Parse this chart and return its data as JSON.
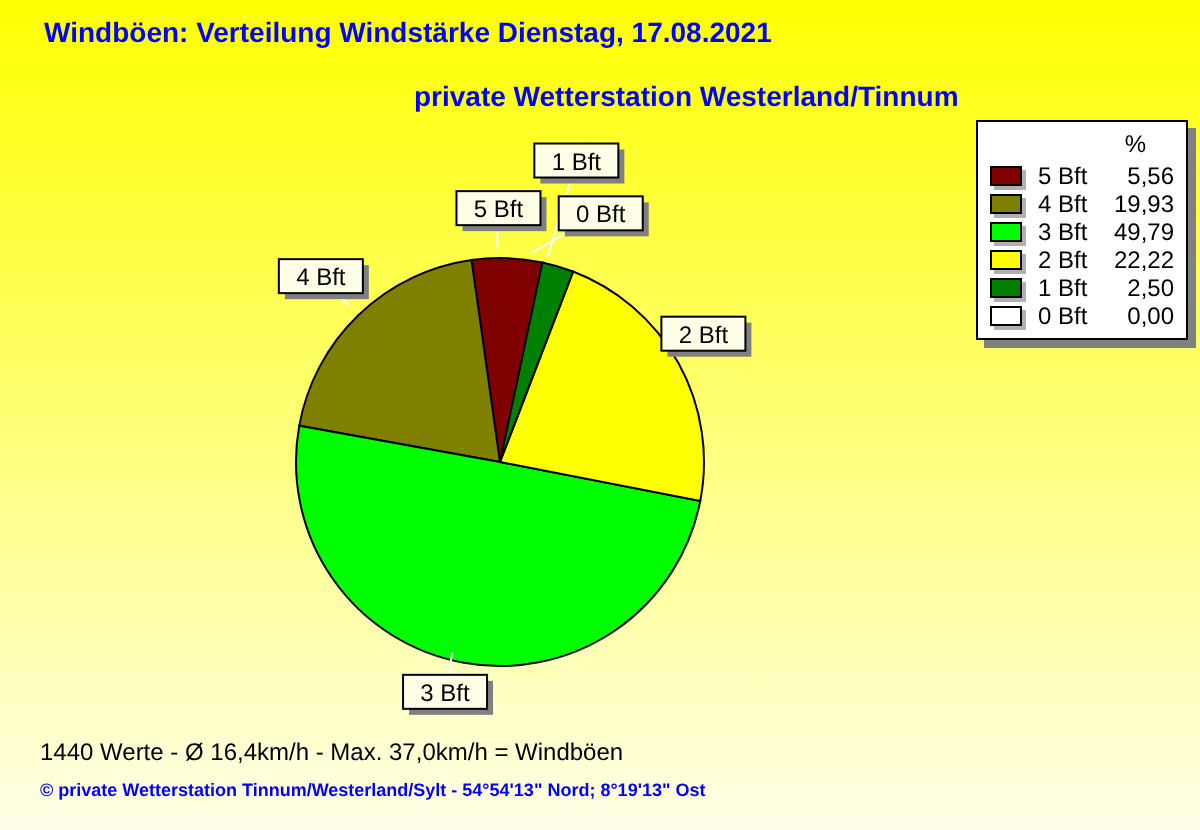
{
  "chart_data": {
    "type": "pie",
    "title": "Windböen: Verteilung Windstärke  Dienstag, 17.08.2021",
    "subtitle": "private Wetterstation Westerland/Tinnum",
    "categories": [
      "5 Bft",
      "4 Bft",
      "3 Bft",
      "2 Bft",
      "1 Bft",
      "0 Bft"
    ],
    "values": [
      5.56,
      19.93,
      49.79,
      22.22,
      2.5,
      0.0
    ],
    "value_labels": [
      "5,56",
      "19,93",
      "49,79",
      "22,22",
      "2,50",
      "0,00"
    ],
    "colors": [
      "#800000",
      "#808000",
      "#00ff00",
      "#ffff00",
      "#008000",
      "#ffffff"
    ],
    "legend": "top right",
    "legend_title": "%",
    "annotations": [
      "1440 Werte   -   Ø 16,4km/h  -  Max. 37,0km/h = Windböen",
      "© private Wetterstation Tinnum/Westerland/Sylt  -  54°54'13\" Nord; 8°19'13\" Ost"
    ]
  }
}
